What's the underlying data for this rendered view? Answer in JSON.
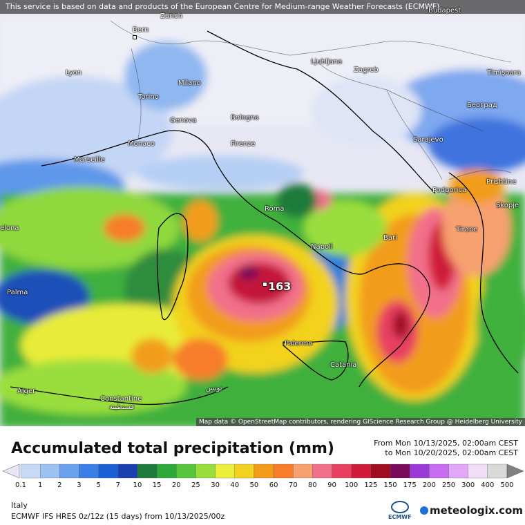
{
  "disclaimer": "This service is based on data and products of the European Centre for Medium-range Weather Forecasts (ECMWF)",
  "attribution": "Map data © OpenStreetMap contributors, rendering GIScience Research Group @ Heidelberg University",
  "title": "Accumulated total precipitation (mm)",
  "period_from": "From Mon 10/13/2025, 02:00am CEST",
  "period_to": "to Mon 10/20/2025, 02:00am CEST",
  "region": "Italy",
  "model": "ECMWF IFS HRES 0z/12z (15 days) from 10/13/2025/00z",
  "ecmwf_logo": "ECMWF",
  "brand": "meteologix.com",
  "max_value": "163",
  "cities": [
    {
      "name": "Budapest"
    },
    {
      "name": "Bern"
    },
    {
      "name": "Zürich"
    },
    {
      "name": "Lyon"
    },
    {
      "name": "Milano"
    },
    {
      "name": "Ljubljana"
    },
    {
      "name": "Zagreb"
    },
    {
      "name": "Timișoara"
    },
    {
      "name": "Torino"
    },
    {
      "name": "Genova"
    },
    {
      "name": "Bologna"
    },
    {
      "name": "Београд"
    },
    {
      "name": "Monaco"
    },
    {
      "name": "Firenze"
    },
    {
      "name": "Sarajevo"
    },
    {
      "name": "Marseille"
    },
    {
      "name": "Podgorica"
    },
    {
      "name": "Prishtine"
    },
    {
      "name": "Roma"
    },
    {
      "name": "Skopje"
    },
    {
      "name": "elona"
    },
    {
      "name": "Napoli"
    },
    {
      "name": "Bari"
    },
    {
      "name": "Tirane"
    },
    {
      "name": "Palma"
    },
    {
      "name": "Palermo"
    },
    {
      "name": "Catania"
    },
    {
      "name": "Alger"
    },
    {
      "name": "Constantine"
    },
    {
      "name": "قسنطينة"
    },
    {
      "name": "تونس"
    }
  ],
  "legend": {
    "values": [
      "0.1",
      "1",
      "2",
      "3",
      "5",
      "7",
      "10",
      "15",
      "20",
      "25",
      "30",
      "40",
      "50",
      "60",
      "70",
      "80",
      "90",
      "100",
      "125",
      "150",
      "175",
      "200",
      "250",
      "300",
      "400",
      "500"
    ],
    "colors": [
      "#e6e6f6",
      "#c7d9f7",
      "#9cc2f2",
      "#6aa2ee",
      "#3a7fe8",
      "#1a5fd6",
      "#1a3fb0",
      "#1e7a3a",
      "#2fa83a",
      "#58c63c",
      "#9ade3c",
      "#ecef3a",
      "#f2d21e",
      "#f29c1a",
      "#f77d2a",
      "#f7a070",
      "#f2708a",
      "#e84060",
      "#d01c3a",
      "#a00c20",
      "#7a0a5a",
      "#9c3ad8",
      "#c86cf0",
      "#e0a8f6",
      "#f2def8",
      "#d9d9d9",
      "#808080"
    ]
  }
}
